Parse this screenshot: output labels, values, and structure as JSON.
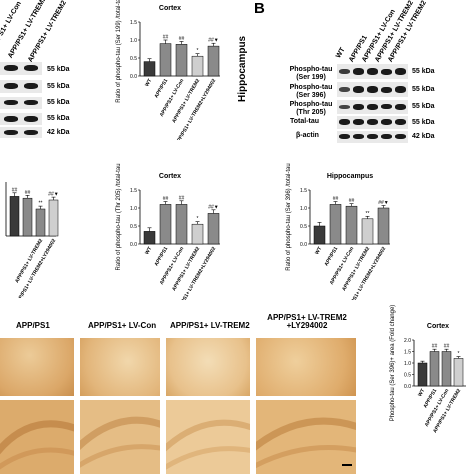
{
  "panel_b_letter": "B",
  "blot_left": {
    "lane_labels": [
      "APP/PS1+ LV-Con",
      "APP/PS1+ LV-TREM2",
      "APP/PS1+ LV-TREM2 +LY294002"
    ],
    "kda": [
      "55 kDa",
      "55 kDa",
      "55 kDa",
      "55 kDa",
      "42 kDa"
    ]
  },
  "blot_right": {
    "region_label": "Hippocampus",
    "lane_labels": [
      "WT",
      "APP/PS1",
      "APP/PS1+ LV-Con",
      "APP/PS1+ LV-TREM2",
      "APP/PS1+ LV-TREM2 +LY294002"
    ],
    "row_labels": [
      "Phospho-tau (Ser 199)",
      "Phospho-tau (Ser 396)",
      "Phospho-tau (Thr 205)",
      "Total-tau",
      "β-actin"
    ],
    "kda": [
      "55 kDa",
      "55 kDa",
      "55 kDa",
      "55 kDa",
      "42 kDa"
    ]
  },
  "stain_panel": {
    "labels": [
      "APP/PS1",
      "APP/PS1+ LV-Con",
      "APP/PS1+ LV-TREM2",
      "APP/PS1+ LV-TREM2 +LY294002"
    ]
  },
  "colors": {
    "dark_bar": "#3a3a3a",
    "gray_bar": "#8a8a8a",
    "light_bar": "#cfcfcf",
    "stain": "#d9a868"
  },
  "chart_data": [
    {
      "type": "bar",
      "title": "Cortex",
      "ylabel": "Ratio of phospho-tau (Ser 199) /total-tau",
      "categories": [
        "WT",
        "APP/PS1",
        "APP/PS1+ LV-Con",
        "APP/PS1+ LV-TREM2",
        "APP/PS1+ LV-TREM2+LY294002"
      ],
      "values": [
        0.4,
        0.9,
        0.88,
        0.55,
        0.83
      ],
      "errors": [
        0.08,
        0.1,
        0.08,
        0.07,
        0.08
      ],
      "ylim": [
        0,
        1.5
      ],
      "ticks": [
        "0.0",
        "0.5",
        "1.0",
        "1.5"
      ],
      "annotations": [
        "",
        "##",
        "##",
        "*",
        "##▼"
      ]
    },
    {
      "type": "bar",
      "title": "",
      "ylabel": "",
      "categories": [
        "",
        "",
        "APP/PS1+ LV-TREM2",
        "APP/PS1+ LV-TREM2+LY294002"
      ],
      "values": [
        1.1,
        1.05,
        0.75,
        1.0
      ],
      "errors": [
        0.1,
        0.08,
        0.08,
        0.08
      ],
      "ylim": [
        0,
        1.5
      ],
      "ticks": [],
      "annotations": [
        "##",
        "##",
        "**",
        "##▼"
      ]
    },
    {
      "type": "bar",
      "title": "Cortex",
      "ylabel": "Ratio of phospho-tau (Thr 205) /total-tau",
      "categories": [
        "WT",
        "APP/PS1",
        "APP/PS1+ LV-Con",
        "APP/PS1+ LV-TREM2",
        "APP/PS1+ LV-TREM2+LY294002"
      ],
      "values": [
        0.35,
        1.1,
        1.1,
        0.55,
        0.85
      ],
      "errors": [
        0.1,
        0.08,
        0.1,
        0.07,
        0.1
      ],
      "ylim": [
        0,
        1.5
      ],
      "ticks": [
        "0.0",
        "0.5",
        "1.0",
        "1.5"
      ],
      "annotations": [
        "",
        "##",
        "##",
        "*",
        "##▼"
      ]
    },
    {
      "type": "bar",
      "title": "Hippocampus",
      "ylabel": "Ratio of phospho-tau (Ser 396) /total-tau",
      "categories": [
        "WT",
        "APP/PS1",
        "APP/PS1+ LV-Con",
        "APP/PS1+ LV-TREM2",
        "APP/PS1+ LV-TREM2+LY294002"
      ],
      "values": [
        0.5,
        1.1,
        1.05,
        0.7,
        1.0
      ],
      "errors": [
        0.1,
        0.08,
        0.07,
        0.07,
        0.07
      ],
      "ylim": [
        0,
        1.5
      ],
      "ticks": [
        "0.0",
        "0.5",
        "1.0",
        "1.5"
      ],
      "annotations": [
        "",
        "##",
        "##",
        "**",
        "##▼"
      ]
    },
    {
      "type": "bar",
      "title": "Cortex",
      "ylabel": "Phospho-tau (Ser 396)+ area (Fold change)",
      "categories": [
        "WT",
        "APP/PS1",
        "APP/PS1+ LV-Con",
        "APP/PS1+ LV-TREM2"
      ],
      "values": [
        1.0,
        1.5,
        1.5,
        1.2
      ],
      "errors": [
        0.08,
        0.1,
        0.1,
        0.08
      ],
      "ylim": [
        0,
        2.0
      ],
      "ticks": [
        "0.0",
        "0.5",
        "1.0",
        "1.5",
        "2.0"
      ],
      "annotations": [
        "",
        "##",
        "##",
        "*"
      ]
    }
  ]
}
